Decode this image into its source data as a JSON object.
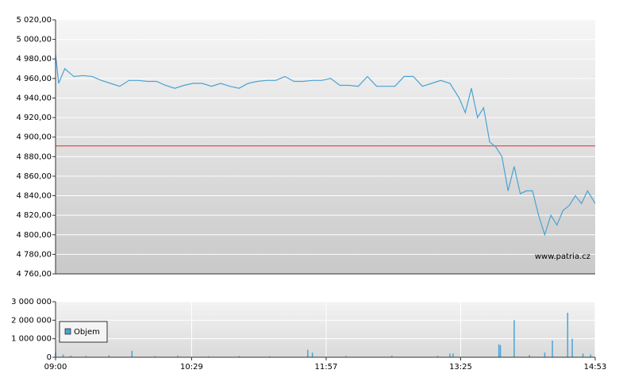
{
  "chart_data": [
    {
      "type": "line",
      "color": "#4aa3d4",
      "reference_line": 4891,
      "reference_color": "#e05050",
      "watermark": "www.patria.cz",
      "x": [
        "09:00",
        "09:02",
        "09:06",
        "09:12",
        "09:18",
        "09:24",
        "09:30",
        "09:36",
        "09:42",
        "09:48",
        "09:54",
        "10:00",
        "10:06",
        "10:12",
        "10:18",
        "10:24",
        "10:30",
        "10:36",
        "10:42",
        "10:48",
        "10:54",
        "11:00",
        "11:06",
        "11:12",
        "11:18",
        "11:24",
        "11:30",
        "11:36",
        "11:42",
        "11:48",
        "11:54",
        "12:00",
        "12:06",
        "12:12",
        "12:18",
        "12:24",
        "12:30",
        "12:36",
        "12:42",
        "12:48",
        "12:54",
        "13:00",
        "13:06",
        "13:12",
        "13:18",
        "13:24",
        "13:28",
        "13:32",
        "13:36",
        "13:40",
        "13:44",
        "13:48",
        "13:52",
        "13:56",
        "14:00",
        "14:04",
        "14:08",
        "14:12",
        "14:16",
        "14:20",
        "14:24",
        "14:28",
        "14:32",
        "14:36",
        "14:40",
        "14:44",
        "14:48",
        "14:53"
      ],
      "values": [
        4985,
        4955,
        4970,
        4962,
        4963,
        4962,
        4958,
        4955,
        4952,
        4958,
        4958,
        4957,
        4957,
        4953,
        4950,
        4953,
        4955,
        4955,
        4952,
        4955,
        4952,
        4950,
        4955,
        4957,
        4958,
        4958,
        4962,
        4957,
        4957,
        4958,
        4958,
        4960,
        4953,
        4953,
        4952,
        4962,
        4952,
        4952,
        4952,
        4962,
        4962,
        4952,
        4955,
        4958,
        4955,
        4940,
        4925,
        4950,
        4920,
        4930,
        4895,
        4890,
        4880,
        4845,
        4870,
        4842,
        4845,
        4845,
        4820,
        4800,
        4820,
        4810,
        4825,
        4830,
        4840,
        4832,
        4845,
        4832
      ],
      "xlim": [
        "09:00",
        "14:53"
      ],
      "ylim": [
        4760,
        5020
      ],
      "yticks": [
        {
          "value": 4760,
          "label": "4 760,00"
        },
        {
          "value": 4780,
          "label": "4 780,00"
        },
        {
          "value": 4800,
          "label": "4 800,00"
        },
        {
          "value": 4820,
          "label": "4 820,00"
        },
        {
          "value": 4840,
          "label": "4 840,00"
        },
        {
          "value": 4860,
          "label": "4 860,00"
        },
        {
          "value": 4880,
          "label": "4 880,00"
        },
        {
          "value": 4900,
          "label": "4 900,00"
        },
        {
          "value": 4920,
          "label": "4 920,00"
        },
        {
          "value": 4940,
          "label": "4 940,00"
        },
        {
          "value": 4960,
          "label": "4 960,00"
        },
        {
          "value": 4980,
          "label": "4 980,00"
        },
        {
          "value": 5000,
          "label": "5 000,00"
        },
        {
          "value": 5020,
          "label": "5 020,00"
        }
      ],
      "grid": true
    },
    {
      "type": "bar",
      "legend": "upper left",
      "grid": true,
      "x": [
        "09:00",
        "09:05",
        "09:10",
        "09:20",
        "09:35",
        "09:50",
        "10:05",
        "10:20",
        "10:40",
        "11:00",
        "11:20",
        "11:45",
        "11:48",
        "12:10",
        "12:40",
        "13:10",
        "13:18",
        "13:20",
        "13:50",
        "13:51",
        "14:00",
        "14:10",
        "14:20",
        "14:25",
        "14:35",
        "14:38",
        "14:45",
        "14:50"
      ],
      "series": [
        {
          "name": "Objem",
          "color": "#4aa3d4",
          "values": [
            250000,
            150000,
            80000,
            60000,
            100000,
            350000,
            60000,
            80000,
            50000,
            60000,
            50000,
            400000,
            250000,
            60000,
            80000,
            70000,
            200000,
            200000,
            700000,
            650000,
            2000000,
            120000,
            250000,
            900000,
            2400000,
            1000000,
            200000,
            150000
          ]
        }
      ],
      "xlim": [
        "09:00",
        "14:53"
      ],
      "ylim": [
        0,
        3000000
      ],
      "xticks": [
        "09:00",
        "10:29",
        "11:57",
        "13:25",
        "14:53"
      ],
      "yticks": [
        0,
        {
          "value": 1000000,
          "label": "1 000 000"
        },
        {
          "value": 2000000,
          "label": "2 000 000"
        },
        {
          "value": 3000000,
          "label": "3 000 000"
        }
      ]
    }
  ]
}
